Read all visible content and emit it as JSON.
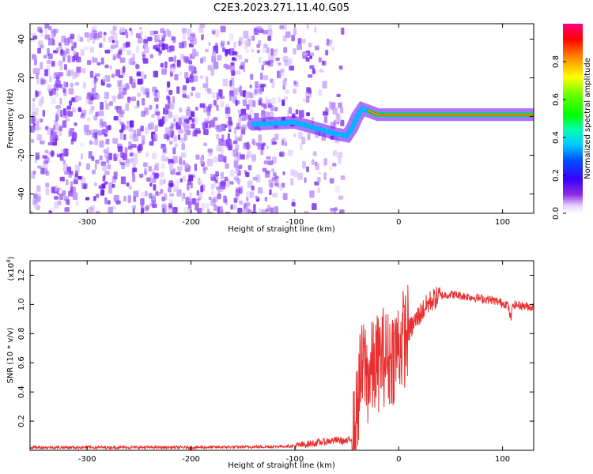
{
  "title": "C2E3.2023.271.11.40.G05",
  "chart_data": [
    {
      "type": "heatmap",
      "panel": "spectrogram",
      "xlabel": "Height of straight line (km)",
      "ylabel": "Frequency (Hz)",
      "xlim": [
        -355,
        130
      ],
      "ylim": [
        -50,
        48
      ],
      "xticks": [
        -300,
        -200,
        -100,
        0,
        100
      ],
      "xtick_labels": [
        "-300",
        "-200",
        "-100",
        "0",
        "100"
      ],
      "yticks": [
        -40,
        -20,
        0,
        20,
        40
      ],
      "ytick_labels": [
        "-40",
        "-20",
        "0",
        "20",
        "40"
      ],
      "colorbar": {
        "label": "Normalized spectral amplitude",
        "range": [
          0,
          1
        ],
        "ticks": [
          0.0,
          0.2,
          0.4,
          0.6,
          0.8
        ],
        "tick_labels": [
          "0.0",
          "0.2",
          "0.4",
          "0.6",
          "0.8"
        ]
      },
      "features": {
        "noise_extent_x": [
          -355,
          -55
        ],
        "signal_onset_x": -140,
        "signal_track": [
          [
            -140,
            -4
          ],
          [
            -100,
            -3
          ],
          [
            -80,
            -6
          ],
          [
            -60,
            -9
          ],
          [
            -50,
            -10
          ],
          [
            -45,
            -6
          ],
          [
            -40,
            0
          ],
          [
            -35,
            4
          ],
          [
            -30,
            3
          ],
          [
            -20,
            1
          ],
          [
            0,
            1
          ],
          [
            50,
            1
          ],
          [
            100,
            1
          ],
          [
            130,
            1
          ]
        ]
      }
    },
    {
      "type": "line",
      "panel": "snr",
      "xlabel": "Height of straight line (km)",
      "ylabel": "SNR (10 * v/v)",
      "yscale_label": "(x10",
      "yscale_exponent": "4",
      "yscale_suffix": ")",
      "xlim": [
        -355,
        130
      ],
      "ylim": [
        0,
        1.3
      ],
      "xticks": [
        -300,
        -200,
        -100,
        0,
        100
      ],
      "xtick_labels": [
        "-300",
        "-200",
        "-100",
        "0",
        "100"
      ],
      "yticks": [
        0.2,
        0.4,
        0.6,
        0.8,
        1.0,
        1.2
      ],
      "ytick_labels": [
        "0.2",
        "0.4",
        "0.6",
        "0.8",
        "1.0",
        "1.2"
      ],
      "color": "#e83030",
      "series": [
        {
          "x": [
            -355,
            -300,
            -200,
            -120,
            -100,
            -80,
            -60,
            -50,
            -42,
            -38,
            -33,
            -30,
            -25,
            -20,
            -15,
            -10,
            -5,
            0,
            10,
            20,
            30,
            40,
            50,
            60,
            70,
            80,
            90,
            100,
            105,
            108,
            110,
            120,
            130
          ],
          "y": [
            0.02,
            0.02,
            0.02,
            0.025,
            0.03,
            0.05,
            0.07,
            0.06,
            0.1,
            0.45,
            0.6,
            0.5,
            0.55,
            0.6,
            0.65,
            0.62,
            0.66,
            0.72,
            0.82,
            0.93,
            1.02,
            1.06,
            1.07,
            1.06,
            1.05,
            1.04,
            1.03,
            1.01,
            1.0,
            0.9,
            1.0,
            0.99,
            0.98
          ]
        }
      ]
    }
  ]
}
